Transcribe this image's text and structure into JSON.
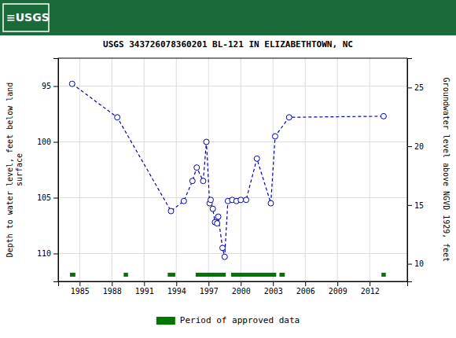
{
  "chart_data": {
    "type": "line",
    "title": "USGS 343726078360201 BL-121 IN ELIZABETHTOWN, NC",
    "annotations": [
      "≡USGS"
    ],
    "ylabel": "Depth to water level, feet below land\nsurface",
    "y2label": "Groundwater level above NGVD 1929, feet",
    "xlim": [
      1983.0,
      2015.5
    ],
    "xticks": [
      1985,
      1988,
      1991,
      1994,
      1997,
      2000,
      2003,
      2006,
      2009,
      2012
    ],
    "ylim": [
      112.5,
      92.5
    ],
    "yticks": [
      95,
      100,
      105,
      110
    ],
    "y2lim": [
      8.5,
      27.5
    ],
    "y2ticks": [
      10,
      15,
      20,
      25
    ],
    "grid": true,
    "x": [
      1984.3,
      1988.5,
      1993.5,
      1994.7,
      1995.5,
      1995.9,
      1996.5,
      1996.8,
      1997.1,
      1997.2,
      1997.4,
      1997.6,
      1997.8,
      1997.9,
      1998.3,
      1998.5,
      1998.8,
      1999.2,
      1999.6,
      2000.0,
      2000.5,
      2001.5,
      2002.8,
      2003.2,
      2004.5,
      2013.3
    ],
    "series": [
      {
        "color": "#0000bb",
        "marker": "circle",
        "line_style": "dashed",
        "values": [
          94.8,
          97.8,
          106.2,
          105.3,
          103.5,
          102.3,
          103.5,
          100.0,
          105.5,
          105.2,
          106.0,
          107.2,
          107.3,
          106.7,
          109.5,
          110.3,
          105.3,
          105.2,
          105.3,
          105.2,
          105.2,
          101.5,
          105.5,
          99.5,
          97.8,
          97.7
        ]
      }
    ],
    "periods": {
      "name": "Period of approved data",
      "color": "#007700",
      "ranges": [
        [
          1984.1,
          1984.6
        ],
        [
          1989.1,
          1989.5
        ],
        [
          1993.2,
          1993.9
        ],
        [
          1995.8,
          1998.6
        ],
        [
          1999.1,
          2003.3
        ],
        [
          2003.6,
          2004.1
        ],
        [
          2013.1,
          2013.5
        ]
      ]
    }
  }
}
